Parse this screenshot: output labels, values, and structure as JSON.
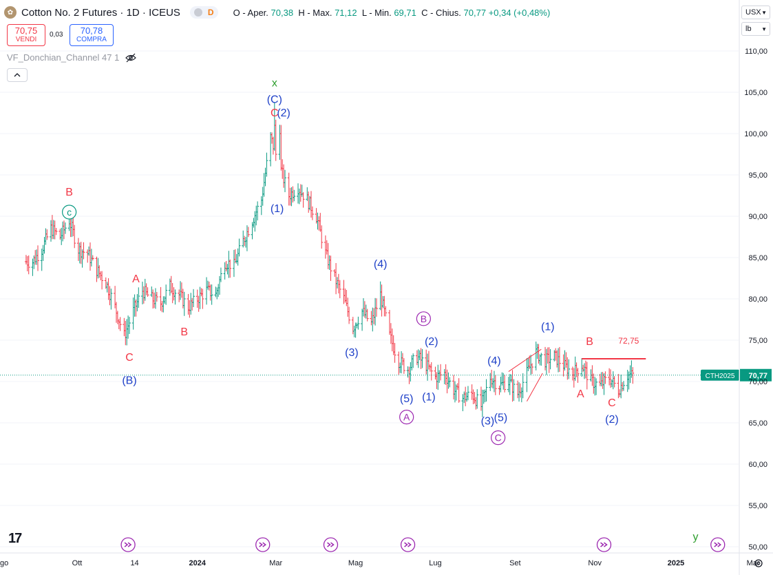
{
  "header": {
    "logo_icon": "cotton-boll-icon",
    "symbol": "Cotton No. 2 Futures · 1D · ICEUS",
    "market_letter": "D",
    "ohlc": [
      {
        "label": "O - Aper.",
        "value": "70,38"
      },
      {
        "label": "H - Max.",
        "value": "71,12"
      },
      {
        "label": "L - Min.",
        "value": "69,71"
      },
      {
        "label": "C - Chius.",
        "value": "70,77 +0,34 (+0,48%)"
      }
    ]
  },
  "trade": {
    "sell_price": "70,75",
    "sell_label": "VENDI",
    "spread": "0,03",
    "buy_price": "70,78",
    "buy_label": "COMPRA"
  },
  "indicator": {
    "name": "VF_Donchian_Channel 47 1",
    "icon": "eye-crossed-icon"
  },
  "collapse_icon": "chevron-up-icon",
  "price_scale": {
    "currency": "USX",
    "unit": "lb"
  },
  "price_tag": {
    "label": "CTH2025",
    "value": "70,77"
  },
  "colors": {
    "up": "#089981",
    "down": "#f23645",
    "blue": "#1e40c8",
    "purple": "#9c27b0",
    "teal": "#089981",
    "green": "#2e9e2e"
  },
  "chart_data": {
    "type": "ohlc-bar",
    "ylim": [
      49.5,
      112.0
    ],
    "y_ticks": [
      "110,00",
      "105,00",
      "100,00",
      "95,00",
      "90,00",
      "85,00",
      "80,00",
      "75,00",
      "70,00",
      "65,00",
      "60,00",
      "55,00",
      "50,00"
    ],
    "x_ticks": [
      "go",
      "Ott",
      "14",
      "2024",
      "Mar",
      "Mag",
      "Lug",
      "Set",
      "Nov",
      "2025",
      "Mar"
    ],
    "last_price": 70.77,
    "price_path": [
      {
        "date": "2023-08-28",
        "close": 84.5
      },
      {
        "date": "2023-09-04",
        "close": 86.0
      },
      {
        "date": "2023-09-11",
        "close": 88.5
      },
      {
        "date": "2023-09-18",
        "close": 87.5
      },
      {
        "date": "2023-09-25",
        "close": 89.5
      },
      {
        "date": "2023-10-02",
        "close": 86.0
      },
      {
        "date": "2023-10-09",
        "close": 85.5
      },
      {
        "date": "2023-10-16",
        "close": 83.5
      },
      {
        "date": "2023-10-23",
        "close": 82.0
      },
      {
        "date": "2023-10-30",
        "close": 79.0
      },
      {
        "date": "2023-11-06",
        "close": 75.5
      },
      {
        "date": "2023-11-13",
        "close": 78.5
      },
      {
        "date": "2023-11-20",
        "close": 81.0
      },
      {
        "date": "2023-11-27",
        "close": 80.0
      },
      {
        "date": "2023-12-04",
        "close": 79.5
      },
      {
        "date": "2023-12-11",
        "close": 81.5
      },
      {
        "date": "2023-12-18",
        "close": 80.5
      },
      {
        "date": "2023-12-25",
        "close": 79.0
      },
      {
        "date": "2024-01-01",
        "close": 80.0
      },
      {
        "date": "2024-01-08",
        "close": 81.0
      },
      {
        "date": "2024-01-15",
        "close": 80.5
      },
      {
        "date": "2024-01-22",
        "close": 84.5
      },
      {
        "date": "2024-01-29",
        "close": 84.0
      },
      {
        "date": "2024-02-05",
        "close": 87.0
      },
      {
        "date": "2024-02-12",
        "close": 89.5
      },
      {
        "date": "2024-02-19",
        "close": 92.0
      },
      {
        "date": "2024-02-26",
        "close": 99.5
      },
      {
        "date": "2024-03-04",
        "close": 96.0
      },
      {
        "date": "2024-03-11",
        "close": 92.5
      },
      {
        "date": "2024-03-18",
        "close": 93.5
      },
      {
        "date": "2024-03-25",
        "close": 92.0
      },
      {
        "date": "2024-04-01",
        "close": 90.0
      },
      {
        "date": "2024-04-08",
        "close": 85.5
      },
      {
        "date": "2024-04-15",
        "close": 82.5
      },
      {
        "date": "2024-04-22",
        "close": 80.0
      },
      {
        "date": "2024-04-29",
        "close": 76.5
      },
      {
        "date": "2024-05-06",
        "close": 78.5
      },
      {
        "date": "2024-05-13",
        "close": 77.0
      },
      {
        "date": "2024-05-20",
        "close": 80.5
      },
      {
        "date": "2024-05-27",
        "close": 75.5
      },
      {
        "date": "2024-06-03",
        "close": 72.5
      },
      {
        "date": "2024-06-10",
        "close": 71.5
      },
      {
        "date": "2024-06-17",
        "close": 73.0
      },
      {
        "date": "2024-06-24",
        "close": 72.0
      },
      {
        "date": "2024-07-01",
        "close": 70.5
      },
      {
        "date": "2024-07-08",
        "close": 71.0
      },
      {
        "date": "2024-07-15",
        "close": 69.0
      },
      {
        "date": "2024-07-22",
        "close": 68.0
      },
      {
        "date": "2024-07-29",
        "close": 68.5
      },
      {
        "date": "2024-08-05",
        "close": 67.0
      },
      {
        "date": "2024-08-12",
        "close": 70.5
      },
      {
        "date": "2024-08-19",
        "close": 69.5
      },
      {
        "date": "2024-08-26",
        "close": 70.0
      },
      {
        "date": "2024-09-02",
        "close": 68.5
      },
      {
        "date": "2024-09-09",
        "close": 71.0
      },
      {
        "date": "2024-09-16",
        "close": 73.5
      },
      {
        "date": "2024-09-23",
        "close": 72.5
      },
      {
        "date": "2024-09-30",
        "close": 73.0
      },
      {
        "date": "2024-10-07",
        "close": 72.0
      },
      {
        "date": "2024-10-14",
        "close": 71.0
      },
      {
        "date": "2024-10-21",
        "close": 72.0
      },
      {
        "date": "2024-10-28",
        "close": 70.0
      },
      {
        "date": "2024-11-04",
        "close": 69.5
      },
      {
        "date": "2024-11-11",
        "close": 70.5
      },
      {
        "date": "2024-11-18",
        "close": 69.0
      },
      {
        "date": "2024-11-25",
        "close": 70.77
      }
    ],
    "resistance": {
      "price": 72.75,
      "label": "72,75",
      "from": "2024-10-21",
      "to": "2024-12-09"
    },
    "wave_labels": [
      {
        "text": "B",
        "date": "2023-09-25",
        "price": 93.0,
        "color": "#f23645",
        "style": "plain"
      },
      {
        "text": "c",
        "date": "2023-09-25",
        "price": 90.5,
        "color": "#089981",
        "style": "circle"
      },
      {
        "text": "A",
        "date": "2023-11-15",
        "price": 82.5,
        "color": "#f23645",
        "style": "plain"
      },
      {
        "text": "C",
        "date": "2023-11-10",
        "price": 73.0,
        "color": "#f23645",
        "style": "plain"
      },
      {
        "text": "(B)",
        "date": "2023-11-10",
        "price": 70.2,
        "color": "#1e40c8",
        "style": "plain"
      },
      {
        "text": "B",
        "date": "2023-12-22",
        "price": 76.1,
        "color": "#f23645",
        "style": "plain"
      },
      {
        "text": "x",
        "date": "2024-02-29",
        "price": 106.2,
        "color": "#2e9e2e",
        "style": "plain"
      },
      {
        "text": "(C)",
        "date": "2024-02-29",
        "price": 104.2,
        "color": "#1e40c8",
        "style": "plain"
      },
      {
        "text": "C",
        "date": "2024-02-29",
        "price": 102.6,
        "color": "#f23645",
        "style": "plain"
      },
      {
        "text": "(2)",
        "date": "2024-03-07",
        "price": 102.6,
        "color": "#1e40c8",
        "style": "plain"
      },
      {
        "text": "(1)",
        "date": "2024-03-02",
        "price": 91.0,
        "color": "#1e40c8",
        "style": "plain"
      },
      {
        "text": "(4)",
        "date": "2024-05-20",
        "price": 84.3,
        "color": "#1e40c8",
        "style": "plain"
      },
      {
        "text": "(3)",
        "date": "2024-04-28",
        "price": 73.6,
        "color": "#1e40c8",
        "style": "plain"
      },
      {
        "text": "B",
        "date": "2024-06-22",
        "price": 77.6,
        "color": "#9c27b0",
        "style": "circle"
      },
      {
        "text": "(2)",
        "date": "2024-06-28",
        "price": 74.9,
        "color": "#1e40c8",
        "style": "plain"
      },
      {
        "text": "(5)",
        "date": "2024-06-09",
        "price": 68.0,
        "color": "#1e40c8",
        "style": "plain"
      },
      {
        "text": "A",
        "date": "2024-06-09",
        "price": 65.7,
        "color": "#9c27b0",
        "style": "circle"
      },
      {
        "text": "(1)",
        "date": "2024-06-26",
        "price": 68.2,
        "color": "#1e40c8",
        "style": "plain"
      },
      {
        "text": "(4)",
        "date": "2024-08-15",
        "price": 72.6,
        "color": "#1e40c8",
        "style": "plain"
      },
      {
        "text": "(3)",
        "date": "2024-08-10",
        "price": 65.3,
        "color": "#1e40c8",
        "style": "plain"
      },
      {
        "text": "(5)",
        "date": "2024-08-20",
        "price": 65.7,
        "color": "#1e40c8",
        "style": "plain"
      },
      {
        "text": "C",
        "date": "2024-08-18",
        "price": 63.2,
        "color": "#9c27b0",
        "style": "circle"
      },
      {
        "text": "(1)",
        "date": "2024-09-25",
        "price": 76.7,
        "color": "#1e40c8",
        "style": "plain"
      },
      {
        "text": "B",
        "date": "2024-10-27",
        "price": 74.9,
        "color": "#f23645",
        "style": "plain"
      },
      {
        "text": "A",
        "date": "2024-10-20",
        "price": 68.6,
        "color": "#f23645",
        "style": "plain"
      },
      {
        "text": "C",
        "date": "2024-11-13",
        "price": 67.5,
        "color": "#f23645",
        "style": "plain"
      },
      {
        "text": "(2)",
        "date": "2024-11-13",
        "price": 65.5,
        "color": "#1e40c8",
        "style": "plain"
      },
      {
        "text": "y",
        "date": "2025-01-16",
        "price": 51.3,
        "color": "#2e9e2e",
        "style": "plain"
      }
    ],
    "trend_lines": [
      {
        "from_date": "2024-08-26",
        "from_price": 71.2,
        "to_date": "2024-09-20",
        "to_price": 73.9
      },
      {
        "from_date": "2024-09-09",
        "from_price": 67.6,
        "to_date": "2024-09-21",
        "to_price": 71.0
      }
    ],
    "event_markers": [
      "2023-11-09",
      "2024-02-20",
      "2024-04-12",
      "2024-06-10",
      "2024-11-07",
      "2025-02-02"
    ]
  }
}
